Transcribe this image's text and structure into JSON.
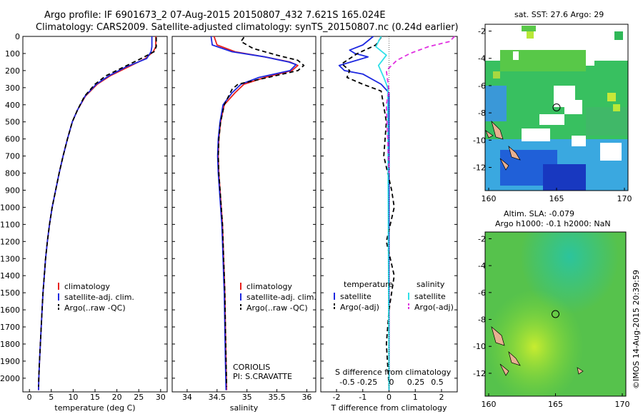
{
  "header": {
    "line1": "Argo profile: IF 6901673_2 07-Aug-2015 20150807_432 7.621S 165.024E",
    "line2": "Climatology: CARS2009. Satellite-adjusted climatology: synTS_20150807.nc (0.24d earlier)"
  },
  "colors": {
    "climatology": "#e8201c",
    "satellite": "#1d28e0",
    "argo": "#000000",
    "sal_satellite": "#30e0e8",
    "sal_argo": "#e030e0"
  },
  "depth_axis": {
    "ylim": [
      0,
      2080
    ],
    "ticks": [
      0,
      100,
      200,
      300,
      400,
      500,
      600,
      700,
      800,
      900,
      1000,
      1100,
      1200,
      1300,
      1400,
      1500,
      1600,
      1700,
      1800,
      1900,
      2000
    ]
  },
  "chart_data": [
    {
      "type": "line",
      "panel": "temperature",
      "xlabel": "temperature (deg C)",
      "xlim": [
        -1.5,
        31.5
      ],
      "xticks": [
        0,
        5,
        10,
        15,
        20,
        25,
        30
      ],
      "legend": [
        "climatology",
        "satellite-adj. clim.",
        "Argo(..raw -QC)"
      ],
      "series": [
        {
          "name": "climatology",
          "key": "climatology",
          "points": [
            [
              28.9,
              0
            ],
            [
              28.9,
              60
            ],
            [
              28.3,
              90
            ],
            [
              26.5,
              130
            ],
            [
              22.5,
              180
            ],
            [
              18.5,
              230
            ],
            [
              15.5,
              280
            ],
            [
              12.8,
              350
            ],
            [
              11,
              430
            ],
            [
              9.8,
              500
            ],
            [
              8.7,
              600
            ],
            [
              7.7,
              700
            ],
            [
              6.8,
              800
            ],
            [
              6,
              900
            ],
            [
              5.2,
              1000
            ],
            [
              4.6,
              1100
            ],
            [
              4.1,
              1200
            ],
            [
              3.7,
              1300
            ],
            [
              3.4,
              1400
            ],
            [
              3.1,
              1500
            ],
            [
              2.9,
              1600
            ],
            [
              2.7,
              1700
            ],
            [
              2.5,
              1800
            ],
            [
              2.3,
              1900
            ],
            [
              2.15,
              2000
            ],
            [
              2.1,
              2070
            ]
          ]
        },
        {
          "name": "satellite-adj. clim.",
          "key": "satellite",
          "points": [
            [
              28.0,
              0
            ],
            [
              28.0,
              60
            ],
            [
              27.8,
              90
            ],
            [
              26.8,
              130
            ],
            [
              22.0,
              180
            ],
            [
              18.2,
              230
            ],
            [
              15.3,
              280
            ],
            [
              12.7,
              350
            ],
            [
              11,
              430
            ],
            [
              9.8,
              500
            ],
            [
              8.7,
              600
            ],
            [
              7.7,
              700
            ],
            [
              6.8,
              800
            ],
            [
              6,
              900
            ],
            [
              5.2,
              1000
            ],
            [
              4.6,
              1100
            ],
            [
              4.1,
              1200
            ],
            [
              3.7,
              1300
            ],
            [
              3.4,
              1400
            ],
            [
              3.1,
              1500
            ],
            [
              2.9,
              1600
            ],
            [
              2.7,
              1700
            ],
            [
              2.5,
              1800
            ],
            [
              2.3,
              1900
            ],
            [
              2.15,
              2000
            ],
            [
              2.1,
              2070
            ]
          ]
        },
        {
          "name": "Argo(..raw -QC)",
          "key": "argo",
          "dashed": true,
          "points": [
            [
              29.0,
              5
            ],
            [
              29.0,
              60
            ],
            [
              28.5,
              90
            ],
            [
              25.5,
              130
            ],
            [
              21.5,
              180
            ],
            [
              17.5,
              230
            ],
            [
              15,
              280
            ],
            [
              12.6,
              350
            ],
            [
              11,
              430
            ],
            [
              9.8,
              500
            ],
            [
              8.7,
              600
            ],
            [
              7.7,
              700
            ],
            [
              6.8,
              800
            ],
            [
              6,
              900
            ],
            [
              5.2,
              1000
            ],
            [
              4.6,
              1100
            ],
            [
              4.1,
              1200
            ],
            [
              3.7,
              1300
            ],
            [
              3.4,
              1400
            ],
            [
              3.1,
              1500
            ],
            [
              2.9,
              1600
            ],
            [
              2.7,
              1700
            ],
            [
              2.5,
              1800
            ],
            [
              2.3,
              1900
            ],
            [
              2.15,
              2000
            ],
            [
              2.1,
              2050
            ]
          ]
        }
      ]
    },
    {
      "type": "line",
      "panel": "salinity",
      "xlabel": "salinity",
      "xlim": [
        33.75,
        36.15
      ],
      "xticks": [
        34,
        34.5,
        35,
        35.5,
        36
      ],
      "legend": [
        "climatology",
        "satellite-adj. clim.",
        "Argo(..raw -QC)"
      ],
      "annotation": [
        "CORIOLIS",
        "PI: S.CRAVATTE"
      ],
      "series": [
        {
          "name": "climatology",
          "key": "climatology",
          "points": [
            [
              34.45,
              0
            ],
            [
              34.5,
              50
            ],
            [
              34.8,
              90
            ],
            [
              35.3,
              120
            ],
            [
              35.72,
              150
            ],
            [
              35.85,
              170
            ],
            [
              35.75,
              200
            ],
            [
              35.3,
              240
            ],
            [
              34.95,
              280
            ],
            [
              34.8,
              330
            ],
            [
              34.62,
              400
            ],
            [
              34.56,
              500
            ],
            [
              34.53,
              600
            ],
            [
              34.52,
              700
            ],
            [
              34.53,
              800
            ],
            [
              34.55,
              900
            ],
            [
              34.57,
              1000
            ],
            [
              34.59,
              1100
            ],
            [
              34.6,
              1200
            ],
            [
              34.61,
              1300
            ],
            [
              34.62,
              1400
            ],
            [
              34.63,
              1500
            ],
            [
              34.64,
              1700
            ],
            [
              34.65,
              1900
            ],
            [
              34.66,
              2070
            ]
          ]
        },
        {
          "name": "satellite-adj. clim.",
          "key": "satellite",
          "points": [
            [
              34.4,
              0
            ],
            [
              34.42,
              50
            ],
            [
              34.75,
              90
            ],
            [
              35.3,
              120
            ],
            [
              35.7,
              150
            ],
            [
              35.82,
              165
            ],
            [
              35.72,
              200
            ],
            [
              35.2,
              240
            ],
            [
              34.9,
              280
            ],
            [
              34.75,
              330
            ],
            [
              34.6,
              400
            ],
            [
              34.55,
              500
            ],
            [
              34.52,
              600
            ],
            [
              34.51,
              700
            ],
            [
              34.52,
              800
            ],
            [
              34.54,
              900
            ],
            [
              34.56,
              1000
            ],
            [
              34.58,
              1100
            ],
            [
              34.59,
              1200
            ],
            [
              34.6,
              1300
            ],
            [
              34.61,
              1400
            ],
            [
              34.62,
              1500
            ],
            [
              34.63,
              1700
            ],
            [
              34.64,
              1900
            ],
            [
              34.65,
              2070
            ]
          ]
        },
        {
          "name": "Argo(..raw -QC)",
          "key": "argo",
          "dashed": true,
          "points": [
            [
              34.95,
              5
            ],
            [
              34.9,
              30
            ],
            [
              35.1,
              70
            ],
            [
              35.5,
              110
            ],
            [
              35.85,
              140
            ],
            [
              35.95,
              170
            ],
            [
              35.85,
              200
            ],
            [
              35.35,
              240
            ],
            [
              34.85,
              280
            ],
            [
              34.75,
              310
            ],
            [
              34.62,
              400
            ],
            [
              34.56,
              500
            ],
            [
              34.53,
              600
            ],
            [
              34.52,
              700
            ],
            [
              34.53,
              800
            ],
            [
              34.55,
              900
            ],
            [
              34.57,
              1000
            ],
            [
              34.59,
              1100
            ],
            [
              34.6,
              1200
            ],
            [
              34.61,
              1300
            ],
            [
              34.62,
              1400
            ],
            [
              34.63,
              1500
            ],
            [
              34.64,
              1700
            ],
            [
              34.65,
              1900
            ],
            [
              34.66,
              2050
            ]
          ]
        }
      ]
    },
    {
      "type": "line",
      "panel": "difference",
      "xlabel": "T difference from climatology",
      "xlabel_top": "S difference from climatology",
      "xlim": [
        -2.6,
        2.6
      ],
      "xticks": [
        -2,
        -1,
        0,
        1,
        2
      ],
      "top_ticks": [
        "-0.5",
        "-0.25",
        "0",
        "0.25",
        "0.5"
      ],
      "legend_temperature": {
        "title": "temperature",
        "items": [
          "satellite",
          "Argo(-adj)"
        ]
      },
      "legend_salinity": {
        "title": "salinity",
        "items": [
          "satellite",
          "Argo(-adj)"
        ]
      },
      "series": [
        {
          "name": "satellite",
          "key": "satellite",
          "group": "temperature",
          "points": [
            [
              -0.6,
              0
            ],
            [
              -1.0,
              50
            ],
            [
              -1.5,
              80
            ],
            [
              -1.3,
              100
            ],
            [
              -0.8,
              120
            ],
            [
              -1.9,
              170
            ],
            [
              -1.7,
              200
            ],
            [
              -1.0,
              220
            ],
            [
              -0.3,
              280
            ],
            [
              0,
              330
            ],
            [
              0,
              2070
            ]
          ]
        },
        {
          "name": "Argo(-adj)",
          "key": "argo",
          "group": "temperature",
          "dashed": true,
          "points": [
            [
              -0.3,
              5
            ],
            [
              -0.5,
              50
            ],
            [
              -1.2,
              100
            ],
            [
              -1.8,
              160
            ],
            [
              -1.5,
              200
            ],
            [
              -1.6,
              240
            ],
            [
              -1.0,
              280
            ],
            [
              -0.3,
              320
            ],
            [
              -0.1,
              500
            ],
            [
              -0.2,
              700
            ],
            [
              0.1,
              900
            ],
            [
              0.2,
              1000
            ],
            [
              -0.1,
              1200
            ],
            [
              0.2,
              1400
            ],
            [
              0,
              1600
            ],
            [
              -0.1,
              1800
            ],
            [
              0,
              2050
            ]
          ]
        },
        {
          "name": "satellite",
          "key": "sal_satellite",
          "group": "salinity",
          "points": [
            [
              -0.3,
              0
            ],
            [
              -0.5,
              60
            ],
            [
              -0.1,
              110
            ],
            [
              -0.4,
              170
            ],
            [
              -0.2,
              240
            ],
            [
              -0.05,
              300
            ],
            [
              0,
              2070
            ]
          ]
        },
        {
          "name": "Argo(-adj)",
          "key": "sal_argo",
          "group": "salinity",
          "dashed": true,
          "points": [
            [
              2.5,
              0
            ],
            [
              2.3,
              30
            ],
            [
              1.5,
              60
            ],
            [
              0.8,
              100
            ],
            [
              0.3,
              140
            ],
            [
              -0.1,
              200
            ],
            [
              -0.05,
              260
            ],
            [
              0,
              320
            ],
            [
              -0.1,
              400
            ],
            [
              -0.05,
              600
            ],
            [
              0,
              800
            ]
          ]
        }
      ]
    },
    {
      "type": "heatmap",
      "panel": "sst-map",
      "title": "sat. SST: 27.6 Argo: 29",
      "xticks": [
        "160",
        "165",
        "170"
      ],
      "yticks": [
        "-2",
        "-4",
        "-6",
        "-8",
        "-10",
        "-12"
      ],
      "marker": {
        "lon": 165.0,
        "lat": -7.6
      }
    },
    {
      "type": "heatmap",
      "panel": "sla-map",
      "title_lines": [
        "Altim. SLA: -0.079",
        "Argo h1000: -0.1 h2000: NaN"
      ],
      "xticks": [
        "160",
        "165",
        "170"
      ],
      "yticks": [
        "-2",
        "-4",
        "-6",
        "-8",
        "-10",
        "-12"
      ],
      "marker": {
        "lon": 165.0,
        "lat": -7.6
      }
    }
  ],
  "footer": {
    "credit": "©IMOS 14-Aug-2015 20:39:59"
  }
}
